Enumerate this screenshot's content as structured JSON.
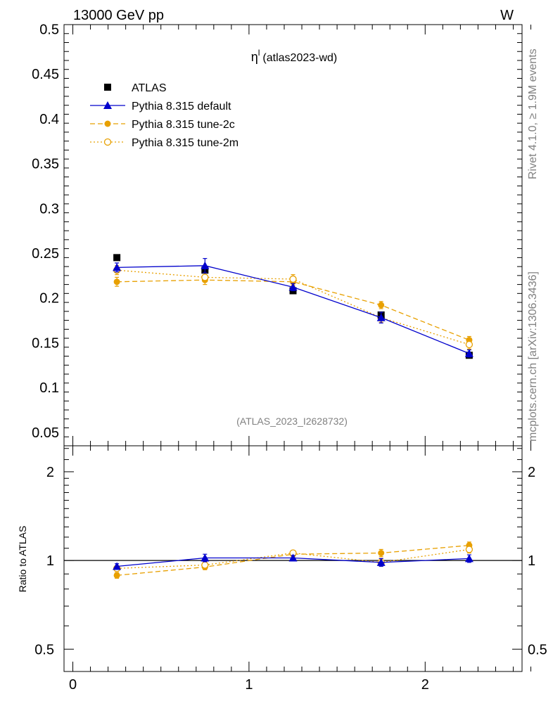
{
  "header": {
    "energy_label": "13000 GeV pp",
    "process_label": "W"
  },
  "side_labels": {
    "rivet": "Rivet 4.1.0, ≥ 1.9M events",
    "source": "mcplots.cern.ch [arXiv:1306.3436]"
  },
  "colors": {
    "data": "#000000",
    "default": "#0000cc",
    "tune2c": "#e8a000",
    "tune2m": "#e8a000",
    "grid_line": "#000000"
  },
  "chart_data": [
    {
      "type": "line",
      "panel": "main",
      "title_symbol": "η",
      "title_superscript": "l",
      "title_rest": "(atlas2023-wd)",
      "watermark": "(ATLAS_2023_I2628732)",
      "xlabel": "",
      "ylabel": "",
      "xlim": [
        -0.05,
        2.55
      ],
      "ylim": [
        0.035,
        0.505
      ],
      "yticks": [
        "0.05",
        "0.1",
        "0.15",
        "0.2",
        "0.25",
        "0.3",
        "0.35",
        "0.4",
        "0.45",
        "0.5"
      ],
      "x": [
        0.25,
        0.75,
        1.25,
        1.75,
        2.25
      ],
      "legend_position": "top-left",
      "series": [
        {
          "name": "ATLAS",
          "style": "data",
          "values": [
            0.245,
            0.231,
            0.208,
            0.181,
            0.136
          ],
          "errors": [
            0.002,
            0.002,
            0.002,
            0.002,
            0.002
          ]
        },
        {
          "name": "Pythia 8.315 default",
          "style": "default",
          "values": [
            0.234,
            0.236,
            0.212,
            0.178,
            0.138
          ],
          "errors": [
            0.005,
            0.008,
            0.004,
            0.006,
            0.004
          ]
        },
        {
          "name": "Pythia 8.315 tune-2c",
          "style": "tune2c",
          "values": [
            0.218,
            0.22,
            0.218,
            0.192,
            0.153
          ],
          "errors": [
            0.005,
            0.005,
            0.004,
            0.004,
            0.004
          ]
        },
        {
          "name": "Pythia 8.315 tune-2m",
          "style": "tune2m",
          "values": [
            0.231,
            0.223,
            0.221,
            0.178,
            0.148
          ],
          "errors": [
            0.005,
            0.005,
            0.005,
            0.005,
            0.005
          ]
        }
      ]
    },
    {
      "type": "line",
      "panel": "ratio",
      "ylabel": "Ratio to ATLAS",
      "scale": "log",
      "xlim": [
        -0.05,
        2.55
      ],
      "ylim": [
        0.42,
        2.45
      ],
      "yticks": [
        "0.5",
        "1",
        "2"
      ],
      "xticks": [
        "0",
        "1",
        "2"
      ],
      "x": [
        0.25,
        0.75,
        1.25,
        1.75,
        2.25
      ],
      "series": [
        {
          "name": "Pythia 8.315 default",
          "style": "default",
          "values": [
            0.955,
            1.02,
            1.02,
            0.985,
            1.015
          ],
          "errors": [
            0.02,
            0.03,
            0.02,
            0.03,
            0.03
          ]
        },
        {
          "name": "Pythia 8.315 tune-2c",
          "style": "tune2c",
          "values": [
            0.89,
            0.95,
            1.05,
            1.06,
            1.125
          ],
          "errors": [
            0.02,
            0.02,
            0.02,
            0.03,
            0.03
          ]
        },
        {
          "name": "Pythia 8.315 tune-2m",
          "style": "tune2m",
          "values": [
            0.94,
            0.965,
            1.06,
            0.985,
            1.09
          ],
          "errors": [
            0.02,
            0.02,
            0.02,
            0.03,
            0.03
          ]
        }
      ]
    }
  ]
}
